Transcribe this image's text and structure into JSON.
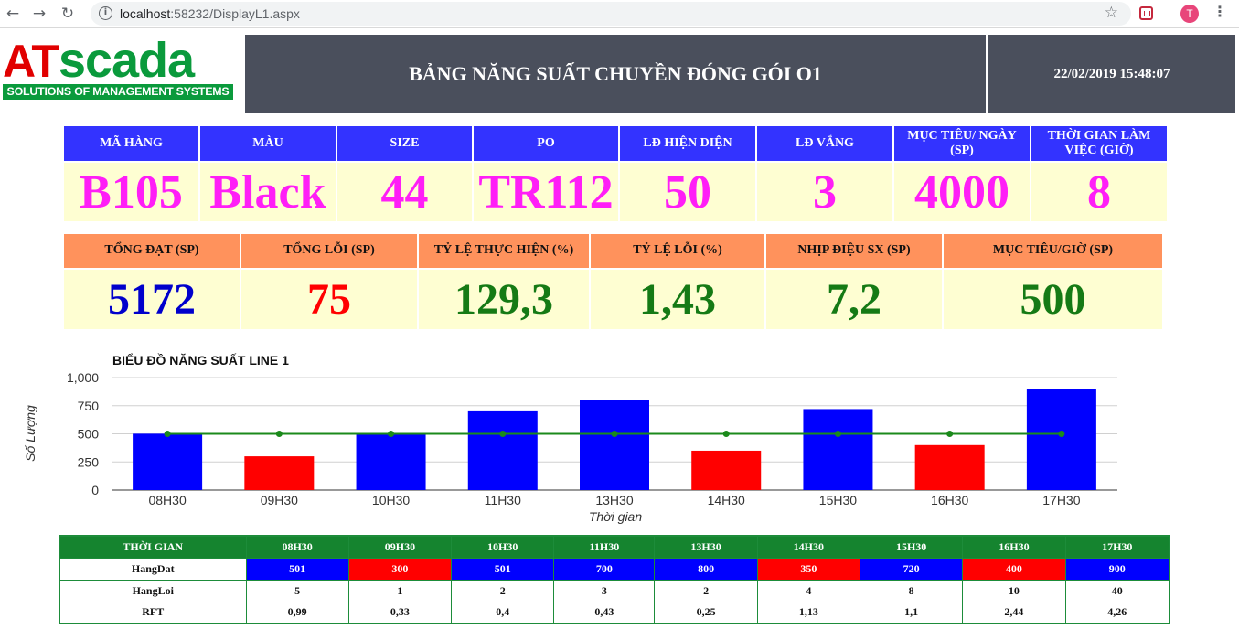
{
  "browser": {
    "url_host": "localhost",
    "url_path": ":58232/DisplayL1.aspx",
    "avatar_letter": "T"
  },
  "header": {
    "logo_at": "AT",
    "logo_scada": "scada",
    "logo_tagline": "SOLUTIONS OF MANAGEMENT SYSTEMS",
    "title": "BẢNG NĂNG SUẤT CHUYỀN ĐÓNG GÓI O1",
    "datetime": "22/02/2019 15:48:07"
  },
  "info1": {
    "headers": [
      "MÃ HÀNG",
      "MÀU",
      "SIZE",
      "PO",
      "LĐ HIỆN DIỆN",
      "LĐ VẮNG",
      "MỤC TIÊU/ NGÀY (SP)",
      "THỜI GIAN LÀM VIỆC (GIỜ)"
    ],
    "values": [
      "B105",
      "Black",
      "44",
      "TR112",
      "50",
      "3",
      "4000",
      "8"
    ],
    "value_color": "#ff1ef7"
  },
  "info2": {
    "headers": [
      "TỔNG ĐẠT (SP)",
      "TỔNG LỖI (SP)",
      "TỶ LỆ THỰC HIỆN (%)",
      "TỶ LỆ LỖI (%)",
      "NHỊP ĐIỆU SX (SP)",
      "MỤC TIÊU/GIỜ (SP)"
    ],
    "values": [
      "5172",
      "75",
      "129,3",
      "1,43",
      "7,2",
      "500"
    ],
    "value_colors": [
      "#0000cc",
      "#ff0000",
      "#157a15",
      "#157a15",
      "#157a15",
      "#157a15"
    ]
  },
  "chart_data": {
    "type": "bar",
    "title": "BIỂU ĐỒ NĂNG SUẤT LINE 1",
    "xlabel": "Thời gian",
    "ylabel": "Số Lượng",
    "categories": [
      "08H30",
      "09H30",
      "10H30",
      "11H30",
      "13H30",
      "14H30",
      "15H30",
      "16H30",
      "17H30"
    ],
    "series": [
      {
        "values": [
          501,
          300,
          501,
          700,
          800,
          350,
          720,
          400,
          900
        ],
        "kind": "bar",
        "colors": [
          "#0000ff",
          "#ff0000",
          "#0000ff",
          "#0000ff",
          "#0000ff",
          "#ff0000",
          "#0000ff",
          "#ff0000",
          "#0000ff"
        ]
      },
      {
        "values": [
          500,
          500,
          500,
          500,
          500,
          500,
          500,
          500,
          500
        ],
        "kind": "line",
        "color": "#1b8a1b"
      }
    ],
    "ylim": [
      0,
      1000
    ],
    "yticks": [
      0,
      250,
      500,
      750,
      1000
    ],
    "ytick_labels": [
      "0",
      "250",
      "500",
      "750",
      "1,000"
    ],
    "grid": true
  },
  "table": {
    "header_label": "THỜI GIAN",
    "times": [
      "08H30",
      "09H30",
      "10H30",
      "11H30",
      "13H30",
      "14H30",
      "15H30",
      "16H30",
      "17H30"
    ],
    "rows": [
      {
        "label": "HangDat",
        "values": [
          "501",
          "300",
          "501",
          "700",
          "800",
          "350",
          "720",
          "400",
          "900"
        ],
        "colors": [
          "blue",
          "red",
          "blue",
          "blue",
          "blue",
          "red",
          "blue",
          "red",
          "blue"
        ]
      },
      {
        "label": "HangLoi",
        "values": [
          "5",
          "1",
          "2",
          "3",
          "2",
          "4",
          "8",
          "10",
          "40"
        ]
      },
      {
        "label": "RFT",
        "values": [
          "0,99",
          "0,33",
          "0,4",
          "0,43",
          "0,25",
          "1,13",
          "1,1",
          "2,44",
          "4,26"
        ]
      }
    ]
  }
}
